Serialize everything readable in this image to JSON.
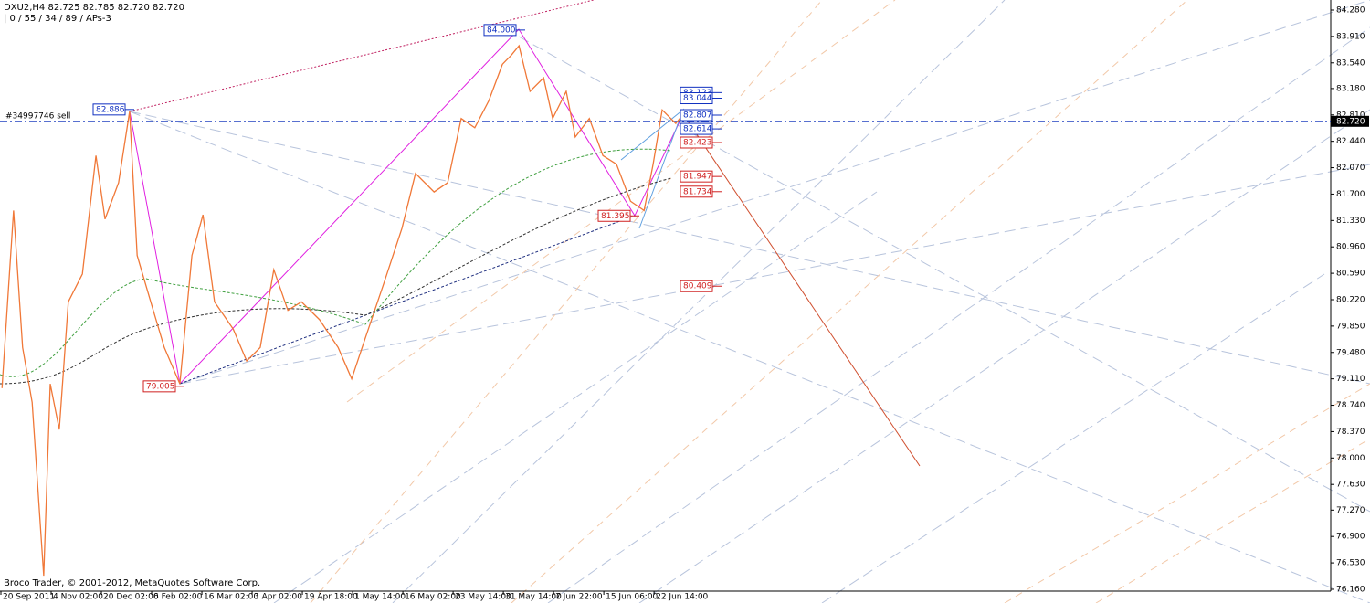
{
  "chart_data": {
    "type": "line",
    "header": "DXU2,H4  82.725 82.785 82.720 82.720",
    "subheader": "| 0 / 55 / 34 / 89 / APs-3",
    "footer": "Broco Trader, © 2001-2012, MetaQuotes Software Corp.",
    "sell_label": "#34997746 sell",
    "color": "#f07838",
    "x": [
      0.04,
      0.27,
      0.45,
      0.64,
      0.87,
      1,
      1.18,
      1.36,
      1.64,
      1.91,
      2.09,
      2.36,
      2.58,
      2.73,
      3,
      3.27,
      3.58,
      3.82,
      4.04,
      4.27,
      4.64,
      4.91,
      5.18,
      5.45,
      5.73,
      6,
      6.36,
      6.73,
      7,
      7.27,
      7.64,
      8,
      8.27,
      8.64,
      8.91,
      9.18,
      9.45,
      9.73,
      10,
      10.18,
      10.33,
      10.55,
      10.82,
      11,
      11.27,
      11.45,
      11.73,
      12,
      12.27,
      12.55,
      12.82,
      13,
      13.18,
      13.45,
      13.6
    ],
    "values": [
      78.98,
      81.47,
      79.55,
      78.78,
      76.35,
      79.04,
      78.4,
      80.19,
      80.58,
      82.24,
      81.35,
      81.86,
      82.86,
      80.84,
      80.19,
      79.55,
      79.04,
      80.84,
      81.41,
      80.19,
      79.81,
      79.36,
      79.55,
      80.64,
      80.07,
      80.19,
      79.94,
      79.55,
      79.11,
      79.68,
      80.45,
      81.22,
      81.99,
      81.73,
      81.86,
      82.76,
      82.63,
      83.01,
      83.52,
      83.65,
      83.78,
      83.14,
      83.33,
      82.76,
      83.14,
      82.5,
      82.76,
      82.24,
      82.12,
      81.6,
      81.47,
      82.12,
      82.88,
      82.69,
      82.82
    ],
    "xlim": [
      0,
      26.45
    ],
    "xticks": [
      {
        "value": 0,
        "label": "20 Sep 2011"
      },
      {
        "value": 1,
        "label": "4 Nov 02:00"
      },
      {
        "value": 2,
        "label": "20 Dec 02:00"
      },
      {
        "value": 3,
        "label": "6 Feb 02:00"
      },
      {
        "value": 4,
        "label": "16 Mar 02:00"
      },
      {
        "value": 5,
        "label": "3 Apr 02:00"
      },
      {
        "value": 6,
        "label": "19 Apr 18:00"
      },
      {
        "value": 7,
        "label": "1 May 14:00"
      },
      {
        "value": 8,
        "label": "16 May 02:00"
      },
      {
        "value": 9,
        "label": "23 May 14:00"
      },
      {
        "value": 10,
        "label": "31 May 14:00"
      },
      {
        "value": 11,
        "label": "7 Jun 22:00"
      },
      {
        "value": 12,
        "label": "15 Jun 06:00"
      },
      {
        "value": 13,
        "label": "22 Jun 14:00"
      }
    ],
    "ylim": [
      76.134,
      84.421
    ],
    "yticks": [
      {
        "value": 84.28,
        "label": "84.280"
      },
      {
        "value": 83.91,
        "label": "83.910"
      },
      {
        "value": 83.54,
        "label": "83.540"
      },
      {
        "value": 83.18,
        "label": "83.180"
      },
      {
        "value": 82.81,
        "label": "82.810"
      },
      {
        "value": 82.44,
        "label": "82.440"
      },
      {
        "value": 82.07,
        "label": "82.070"
      },
      {
        "value": 81.7,
        "label": "81.700"
      },
      {
        "value": 81.33,
        "label": "81.330"
      },
      {
        "value": 80.96,
        "label": "80.960"
      },
      {
        "value": 80.59,
        "label": "80.590"
      },
      {
        "value": 80.22,
        "label": "80.220"
      },
      {
        "value": 79.85,
        "label": "79.850"
      },
      {
        "value": 79.48,
        "label": "79.480"
      },
      {
        "value": 79.11,
        "label": "79.110"
      },
      {
        "value": 78.74,
        "label": "78.740"
      },
      {
        "value": 78.37,
        "label": "78.370"
      },
      {
        "value": 78.0,
        "label": "78.000"
      },
      {
        "value": 77.63,
        "label": "77.630"
      },
      {
        "value": 77.27,
        "label": "77.270"
      },
      {
        "value": 76.9,
        "label": "76.900"
      },
      {
        "value": 76.53,
        "label": "76.530"
      },
      {
        "value": 76.16,
        "label": "76.160"
      }
    ],
    "current_price": {
      "value": 82.72,
      "label": "82.720"
    },
    "price_labels": [
      {
        "value": 84.0,
        "label": "84.000",
        "color": "#1030c0"
      },
      {
        "value": 82.886,
        "label": "82.886",
        "color": "#1030c0"
      },
      {
        "value": 79.005,
        "label": "79.005",
        "color": "#d02020"
      },
      {
        "value": 81.395,
        "label": "81.395",
        "color": "#d02020"
      },
      {
        "value": 83.123,
        "label": "83.123",
        "color": "#1030c0"
      },
      {
        "value": 83.044,
        "label": "83.044",
        "color": "#1030c0"
      },
      {
        "value": 82.807,
        "label": "82.807",
        "color": "#1030c0"
      },
      {
        "value": 82.614,
        "label": "82.614",
        "color": "#1030c0"
      },
      {
        "value": 82.423,
        "label": "82.423",
        "color": "#d02020"
      },
      {
        "value": 81.947,
        "label": "81.947",
        "color": "#d02020"
      },
      {
        "value": 81.734,
        "label": "81.734",
        "color": "#d02020"
      },
      {
        "value": 80.409,
        "label": "80.409",
        "color": "#d02020"
      }
    ]
  }
}
